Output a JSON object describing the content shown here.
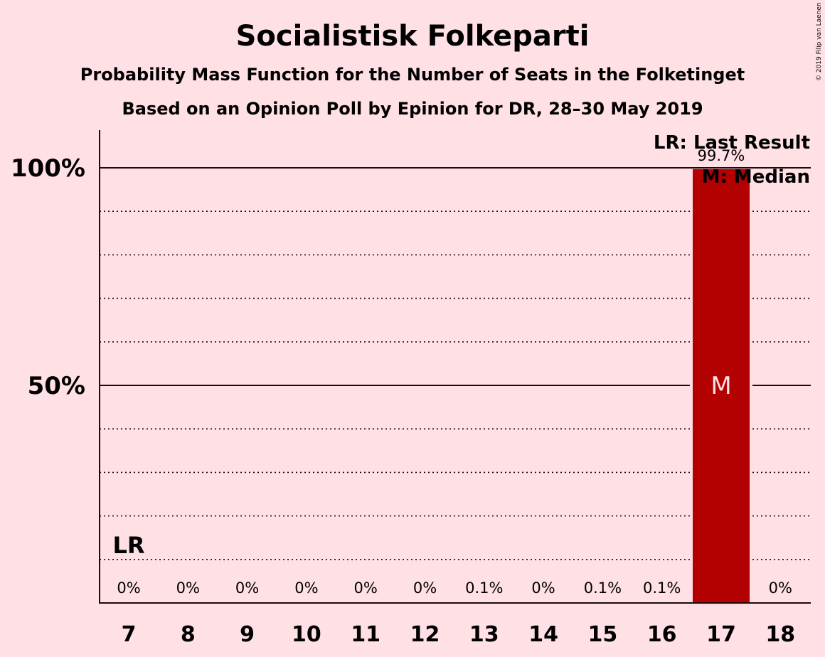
{
  "title": "Socialistisk Folkeparti",
  "subtitle": "Probability Mass Function for the Number of Seats in the Folketinget",
  "subtitle2": "Based on an Opinion Poll by Epinion for DR, 28–30 May 2019",
  "copyright": "© 2019 Filip van Laenen",
  "legend": {
    "last_result": "LR: Last Result",
    "median": "M: Median"
  },
  "lr_label": "LR",
  "median_label": "M",
  "colors": {
    "background": "#ffe0e5",
    "bar": "#b30000",
    "text": "#1a0a0a"
  },
  "chart_data": {
    "type": "bar",
    "categories": [
      "7",
      "8",
      "9",
      "10",
      "11",
      "12",
      "13",
      "14",
      "15",
      "16",
      "17",
      "18"
    ],
    "values": [
      0,
      0,
      0,
      0,
      0,
      0,
      0.1,
      0,
      0.1,
      0.1,
      99.7,
      0
    ],
    "value_labels": [
      "0%",
      "0%",
      "0%",
      "0%",
      "0%",
      "0%",
      "0.1%",
      "0%",
      "0.1%",
      "0.1%",
      "99.7%",
      "0%"
    ],
    "y_ticks": [
      {
        "value": 50,
        "label": "50%"
      },
      {
        "value": 100,
        "label": "100%"
      }
    ],
    "ylim": [
      0,
      100
    ],
    "grid": true,
    "last_result_seat": "7",
    "median_seat": "17",
    "legend_position": "top-right"
  }
}
